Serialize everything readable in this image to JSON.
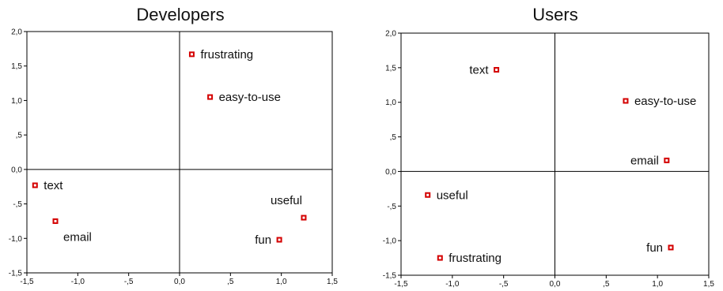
{
  "chart_data": [
    {
      "type": "scatter",
      "title": "Developers",
      "xlim": [
        -1.5,
        1.5
      ],
      "ylim": [
        -1.5,
        2.0
      ],
      "x_ticks": [
        -1.5,
        -1.0,
        -0.5,
        0.0,
        0.5,
        1.0,
        1.5
      ],
      "x_tick_labels": [
        "-1,5",
        "-1,0",
        "-,5",
        "0,0",
        ",5",
        "1,0",
        "1,5"
      ],
      "y_ticks": [
        -1.5,
        -1.0,
        -0.5,
        0.0,
        0.5,
        1.0,
        1.5,
        2.0
      ],
      "y_tick_labels": [
        "-1,5",
        "-1,0",
        "-,5",
        "0,0",
        ",5",
        "1,0",
        "1,5",
        "2,0"
      ],
      "grid": false,
      "reference_lines": {
        "x": 0,
        "y": 0
      },
      "points": [
        {
          "label": "frustrating",
          "x": 0.12,
          "y": 1.67,
          "label_pos": "right"
        },
        {
          "label": "easy-to-use",
          "x": 0.3,
          "y": 1.05,
          "label_pos": "right"
        },
        {
          "label": "text",
          "x": -1.42,
          "y": -0.23,
          "label_pos": "right"
        },
        {
          "label": "email",
          "x": -1.22,
          "y": -0.75,
          "label_pos": "below-right"
        },
        {
          "label": "useful",
          "x": 1.22,
          "y": -0.7,
          "label_pos": "above-left"
        },
        {
          "label": "fun",
          "x": 0.98,
          "y": -1.02,
          "label_pos": "left"
        }
      ]
    },
    {
      "type": "scatter",
      "title": "Users",
      "xlim": [
        -1.5,
        1.5
      ],
      "ylim": [
        -1.5,
        2.0
      ],
      "x_ticks": [
        -1.5,
        -1.0,
        -0.5,
        0.0,
        0.5,
        1.0,
        1.5
      ],
      "x_tick_labels": [
        "-1,5",
        "-1,0",
        "-,5",
        "0,0",
        ",5",
        "1,0",
        "1,5"
      ],
      "y_ticks": [
        -1.5,
        -1.0,
        -0.5,
        0.0,
        0.5,
        1.0,
        1.5,
        2.0
      ],
      "y_tick_labels": [
        "-1,5",
        "-1,0",
        "-,5",
        "0,0",
        ",5",
        "1,0",
        "1,5",
        "2,0"
      ],
      "grid": false,
      "reference_lines": {
        "x": 0,
        "y": 0
      },
      "points": [
        {
          "label": "text",
          "x": -0.57,
          "y": 1.47,
          "label_pos": "left"
        },
        {
          "label": "easy-to-use",
          "x": 0.69,
          "y": 1.02,
          "label_pos": "right"
        },
        {
          "label": "email",
          "x": 1.09,
          "y": 0.16,
          "label_pos": "left"
        },
        {
          "label": "useful",
          "x": -1.24,
          "y": -0.34,
          "label_pos": "right"
        },
        {
          "label": "frustrating",
          "x": -1.12,
          "y": -1.25,
          "label_pos": "right"
        },
        {
          "label": "fun",
          "x": 1.13,
          "y": -1.1,
          "label_pos": "left"
        }
      ]
    }
  ]
}
